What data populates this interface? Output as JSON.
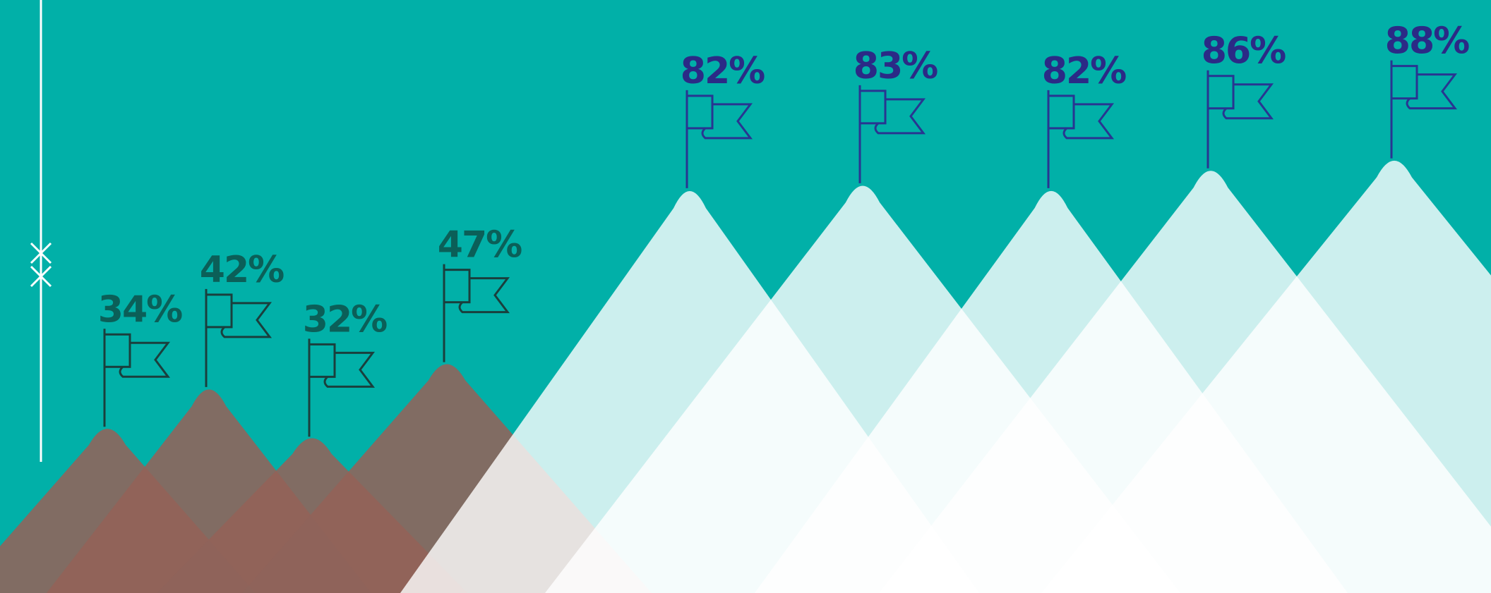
{
  "chart_data": {
    "type": "bar",
    "title": "",
    "xlabel": "",
    "ylabel": "",
    "ylim": [
      0,
      100
    ],
    "categories": [
      "",
      "",
      "",
      "",
      "",
      "",
      "",
      "",
      ""
    ],
    "values": [
      34,
      42,
      32,
      47,
      82,
      83,
      82,
      86,
      88
    ],
    "labels": [
      "34%",
      "42%",
      "32%",
      "47%",
      "82%",
      "83%",
      "82%",
      "86%",
      "88%"
    ],
    "groups": [
      0,
      0,
      0,
      0,
      1,
      1,
      1,
      1,
      1
    ],
    "series": [
      {
        "values": [
          34,
          42,
          32,
          47,
          null,
          null,
          null,
          null,
          null
        ]
      },
      {
        "values": [
          null,
          null,
          null,
          null,
          82,
          83,
          82,
          86,
          88
        ]
      }
    ],
    "grid": false,
    "legend": "none",
    "colors": {
      "background": "#01b0a8",
      "low_mountain": "#8a665c",
      "low_overlap": "#d84237",
      "low_label": "#0b5f58",
      "low_flag": "#1a3f3d",
      "high_mountain": "#ffffff",
      "high_label": "#2b2a86",
      "high_flag": "#283591",
      "axis_line": "#ffffff"
    },
    "icons": {
      "marker": "flag-icon",
      "axis_break": "axis-break-icon"
    }
  }
}
